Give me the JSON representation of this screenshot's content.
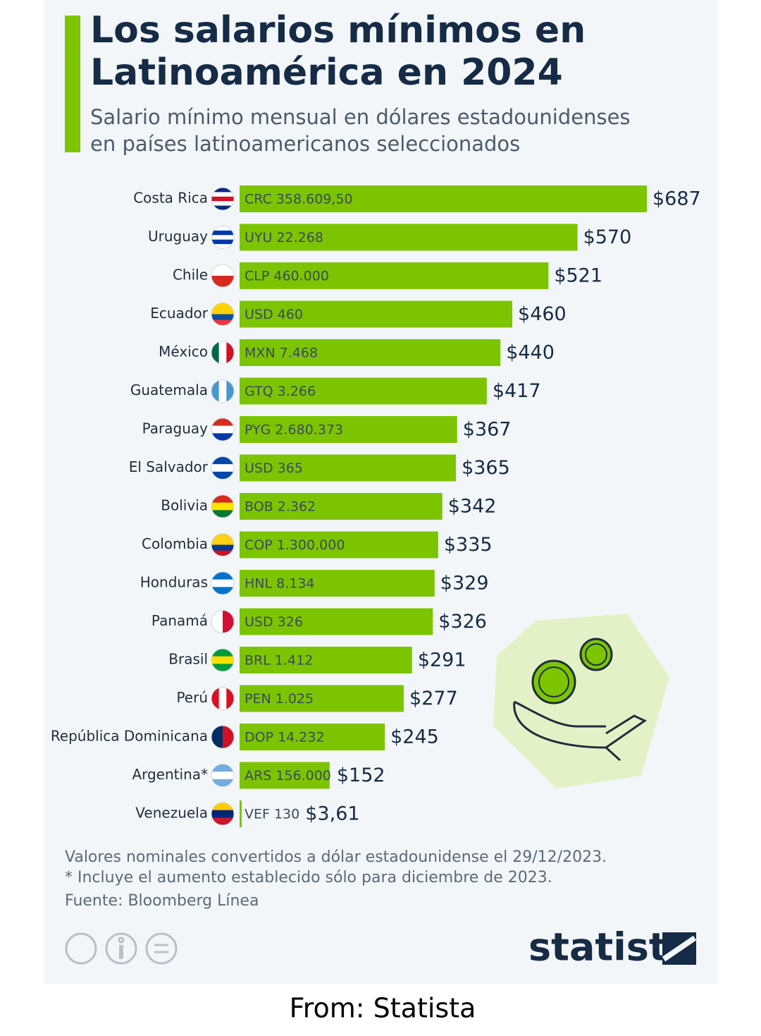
{
  "chart_data": {
    "type": "bar",
    "orientation": "horizontal",
    "title": [
      "Los salarios mínimos en",
      "Latinoamérica en 2024"
    ],
    "subtitle": [
      "Salario mínimo mensual en dólares estadounidenses",
      "en países latinoamericanos seleccionados"
    ],
    "categories": [
      "Costa Rica",
      "Uruguay",
      "Chile",
      "Ecuador",
      "México",
      "Guatemala",
      "Paraguay",
      "El Salvador",
      "Bolivia",
      "Colombia",
      "Honduras",
      "Panamá",
      "Brasil",
      "Perú",
      "República Dominicana",
      "Argentina*",
      "Venezuela"
    ],
    "values": [
      687,
      570,
      521,
      460,
      440,
      417,
      367,
      365,
      342,
      335,
      329,
      326,
      291,
      277,
      245,
      152,
      3.61
    ],
    "value_labels": [
      "$687",
      "$570",
      "$521",
      "$460",
      "$440",
      "$417",
      "$367",
      "$365",
      "$342",
      "$335",
      "$329",
      "$326",
      "$291",
      "$277",
      "$245",
      "$152",
      "$3,61"
    ],
    "local_labels": [
      "CRC 358.609,50",
      "UYU 22.268",
      "CLP 460.000",
      "USD 460",
      "MXN 7.468",
      "GTQ 3.266",
      "PYG 2.680.373",
      "USD 365",
      "BOB 2.362",
      "COP 1.300.000",
      "HNL 8.134",
      "USD 326",
      "BRL 1.412",
      "PEN 1.025",
      "DOP 14.232",
      "ARS 156.000",
      "VEF 130"
    ],
    "color": "#7cc400",
    "notes": [
      "Valores nominales convertidos a dólar estadounidense el 29/12/2023.",
      "* Incluye el aumento establecido sólo para diciembre de 2023."
    ],
    "source": "Fuente: Bloomberg Línea",
    "brand": "statista",
    "credit": "From: Statista"
  }
}
